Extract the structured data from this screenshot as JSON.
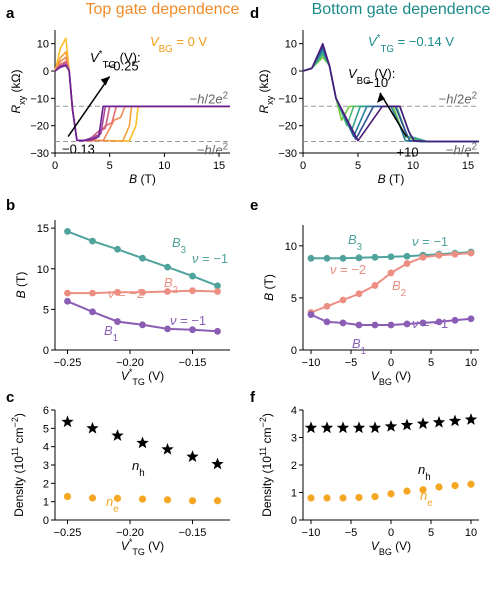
{
  "panel_labels": [
    "a",
    "b",
    "c",
    "d",
    "e",
    "f"
  ],
  "chart_data": [
    {
      "id": "a",
      "type": "line",
      "title": "Top gate dependence",
      "title_color": "#f28c28",
      "fixed_label": "V_BG = 0 V",
      "fixed_label_color": "#f39c12",
      "legend_title": "V*_TG (V):",
      "arrow_start_label": "−0.13",
      "arrow_end_label": "−0.25",
      "xlabel": "B (T)",
      "ylabel": "R_xy (kΩ)",
      "xlim": [
        0,
        16
      ],
      "ylim": [
        -30,
        15
      ],
      "xticks": [
        0,
        5,
        10,
        15
      ],
      "yticks": [
        -30,
        -20,
        -10,
        0,
        10
      ],
      "ref_lines": [
        {
          "value": -12.9,
          "label": "−h/2e²"
        },
        {
          "value": -25.8,
          "label": "−h/e²"
        }
      ],
      "series": [
        {
          "vtg": -0.13,
          "color": "#fbbf2a",
          "peak": [
            1.0,
            12
          ],
          "transition": 7.6,
          "dip": null
        },
        {
          "vtg": -0.15,
          "color": "#f6a13c",
          "peak": [
            1.0,
            7
          ],
          "transition": 7.0,
          "dip": null
        },
        {
          "vtg": -0.17,
          "color": "#f08a58",
          "peak": [
            1.0,
            5
          ],
          "transition": 6.4,
          "dip": [
            6.0,
            -18
          ]
        },
        {
          "vtg": -0.19,
          "color": "#e4706e",
          "peak": [
            1.0,
            3.5
          ],
          "transition": 5.8,
          "dip": [
            5.2,
            -20
          ]
        },
        {
          "vtg": -0.21,
          "color": "#cc5f86",
          "peak": [
            1.0,
            3
          ],
          "transition": 5.0,
          "dip": [
            4.6,
            -22
          ]
        },
        {
          "vtg": -0.23,
          "color": "#a74c9c",
          "peak": [
            1.0,
            2.5
          ],
          "transition": 4.4,
          "dip": [
            4.2,
            -24
          ]
        },
        {
          "vtg": -0.25,
          "color": "#6a1f94",
          "peak": [
            1.0,
            2
          ],
          "transition": 3.8,
          "dip": [
            4.0,
            -25
          ]
        }
      ]
    },
    {
      "id": "b",
      "type": "line",
      "xlabel": "V*_TG (V)",
      "ylabel": "B (T)",
      "xlim": [
        -0.26,
        -0.12
      ],
      "ylim": [
        0,
        16
      ],
      "xticks": [
        -0.25,
        -0.2,
        -0.15
      ],
      "yticks": [
        0,
        5,
        10,
        15
      ],
      "series": [
        {
          "name": "B3",
          "annotation": "ν = −1",
          "color": "#4fa39c",
          "x": [
            -0.25,
            -0.23,
            -0.21,
            -0.19,
            -0.17,
            -0.15,
            -0.13
          ],
          "y": [
            14.6,
            13.4,
            12.4,
            11.3,
            10.2,
            9.1,
            7.9
          ]
        },
        {
          "name": "B2",
          "annotation": "ν = −2",
          "color": "#ec8f82",
          "x": [
            -0.25,
            -0.23,
            -0.21,
            -0.19,
            -0.17,
            -0.15,
            -0.13
          ],
          "y": [
            7.0,
            7.0,
            7.1,
            7.1,
            7.2,
            7.3,
            7.2
          ]
        },
        {
          "name": "B1",
          "annotation": "ν = −1",
          "color": "#8b5eb5",
          "x": [
            -0.25,
            -0.23,
            -0.21,
            -0.19,
            -0.17,
            -0.15,
            -0.13
          ],
          "y": [
            6.0,
            4.7,
            3.5,
            3.1,
            2.6,
            2.5,
            2.3
          ]
        }
      ]
    },
    {
      "id": "c",
      "type": "scatter",
      "xlabel": "V*_TG (V)",
      "ylabel": "Density (10¹¹ cm⁻²)",
      "xlim": [
        -0.26,
        -0.12
      ],
      "ylim": [
        0,
        6
      ],
      "xticks": [
        -0.25,
        -0.2,
        -0.15
      ],
      "yticks": [
        0,
        1,
        2,
        3,
        4,
        5,
        6
      ],
      "series": [
        {
          "name": "nh",
          "marker": "star",
          "color": "#000000",
          "x": [
            -0.25,
            -0.23,
            -0.21,
            -0.19,
            -0.17,
            -0.15,
            -0.13
          ],
          "y": [
            5.35,
            5.0,
            4.6,
            4.2,
            3.85,
            3.45,
            3.05
          ]
        },
        {
          "name": "ne",
          "marker": "circle",
          "color": "#f5a623",
          "x": [
            -0.25,
            -0.23,
            -0.21,
            -0.19,
            -0.17,
            -0.15,
            -0.13
          ],
          "y": [
            1.28,
            1.2,
            1.18,
            1.14,
            1.1,
            1.05,
            1.05
          ]
        }
      ]
    },
    {
      "id": "d",
      "type": "line",
      "title": "Bottom gate dependence",
      "title_color": "#1d8a8a",
      "fixed_label": "V*_TG = −0.14 V",
      "fixed_label_color": "#1d8a8a",
      "legend_title": "V_BG (V):",
      "arrow_start_label": "+10",
      "arrow_end_label": "−10",
      "xlabel": "B (T)",
      "ylabel": "R_xy (kΩ)",
      "xlim": [
        0,
        16
      ],
      "ylim": [
        -30,
        15
      ],
      "xticks": [
        0,
        5,
        10,
        15
      ],
      "yticks": [
        -30,
        -20,
        -10,
        0,
        10
      ],
      "ref_lines": [
        {
          "value": -12.9,
          "label": "−h/2e²"
        },
        {
          "value": -25.8,
          "label": "−h/e²"
        }
      ],
      "series": [
        {
          "vbg": -10,
          "color": "#7ac943",
          "peak": [
            1.8,
            5
          ],
          "plateau": [
            4.2,
            8.2
          ],
          "dip": [
            3.5,
            -18
          ],
          "bump": null
        },
        {
          "vbg": -6,
          "color": "#4cb87a",
          "peak": [
            1.8,
            6
          ],
          "plateau": [
            4.6,
            8.5
          ],
          "dip": [
            4.0,
            -20
          ],
          "bump": null
        },
        {
          "vbg": -2,
          "color": "#2f9e8f",
          "peak": [
            1.8,
            7
          ],
          "plateau": [
            5.2,
            8.8
          ],
          "dip": [
            4.4,
            -22
          ],
          "bump": null
        },
        {
          "vbg": 2,
          "color": "#2a7f9e",
          "peak": [
            1.8,
            8
          ],
          "plateau": [
            5.8,
            8.0
          ],
          "dip": [
            4.6,
            -24
          ],
          "bump": [
            8.8,
            -20
          ]
        },
        {
          "vbg": 6,
          "color": "#2f4f94",
          "peak": [
            1.8,
            9
          ],
          "plateau": [
            6.4,
            8.2
          ],
          "dip": [
            4.8,
            -25
          ],
          "bump": [
            9.2,
            -21
          ]
        },
        {
          "vbg": 10,
          "color": "#4a1a7a",
          "peak": [
            1.8,
            10
          ],
          "plateau": [
            7.2,
            8.8
          ],
          "dip": [
            5.0,
            -25.5
          ],
          "bump": [
            9.6,
            -22
          ]
        }
      ]
    },
    {
      "id": "e",
      "type": "line",
      "xlabel": "V_BG (V)",
      "ylabel": "B (T)",
      "xlim": [
        -11,
        11
      ],
      "ylim": [
        0,
        12
      ],
      "xticks": [
        -10,
        -5,
        0,
        5,
        10
      ],
      "yticks": [
        0,
        5,
        10
      ],
      "series": [
        {
          "name": "B3",
          "annotation": "ν = −1",
          "color": "#4fa39c",
          "x": [
            -10,
            -8,
            -6,
            -4,
            -2,
            0,
            2,
            4,
            6,
            8,
            10
          ],
          "y": [
            8.8,
            8.8,
            8.8,
            8.85,
            8.9,
            8.95,
            9.0,
            9.1,
            9.2,
            9.3,
            9.4
          ]
        },
        {
          "name": "B2",
          "annotation": "ν = −2",
          "color": "#ec8f82",
          "x": [
            -10,
            -8,
            -6,
            -4,
            -2,
            0,
            2,
            4,
            6,
            8,
            10
          ],
          "y": [
            3.6,
            4.2,
            4.8,
            5.4,
            6.2,
            7.4,
            8.3,
            8.9,
            9.1,
            9.2,
            9.3
          ]
        },
        {
          "name": "B1",
          "annotation": "ν = −1",
          "color": "#8b5eb5",
          "x": [
            -10,
            -8,
            -6,
            -4,
            -2,
            0,
            2,
            4,
            6,
            8,
            10
          ],
          "y": [
            3.4,
            2.7,
            2.6,
            2.4,
            2.4,
            2.4,
            2.5,
            2.6,
            2.7,
            2.85,
            3.0
          ]
        }
      ]
    },
    {
      "id": "f",
      "type": "scatter",
      "xlabel": "V_BG (V)",
      "ylabel": "Density (10¹¹ cm⁻²)",
      "xlim": [
        -11,
        11
      ],
      "ylim": [
        0,
        4
      ],
      "xticks": [
        -10,
        -5,
        0,
        5,
        10
      ],
      "yticks": [
        0,
        1,
        2,
        3,
        4
      ],
      "series": [
        {
          "name": "nh",
          "marker": "star",
          "color": "#000000",
          "x": [
            -10,
            -8,
            -6,
            -4,
            -2,
            0,
            2,
            4,
            6,
            8,
            10
          ],
          "y": [
            3.35,
            3.35,
            3.35,
            3.35,
            3.35,
            3.4,
            3.45,
            3.5,
            3.55,
            3.6,
            3.65
          ]
        },
        {
          "name": "ne",
          "marker": "circle",
          "color": "#f5a623",
          "x": [
            -10,
            -8,
            -6,
            -4,
            -2,
            0,
            2,
            4,
            6,
            8,
            10
          ],
          "y": [
            0.8,
            0.8,
            0.8,
            0.82,
            0.85,
            0.95,
            1.05,
            1.1,
            1.2,
            1.25,
            1.3
          ]
        }
      ]
    }
  ]
}
